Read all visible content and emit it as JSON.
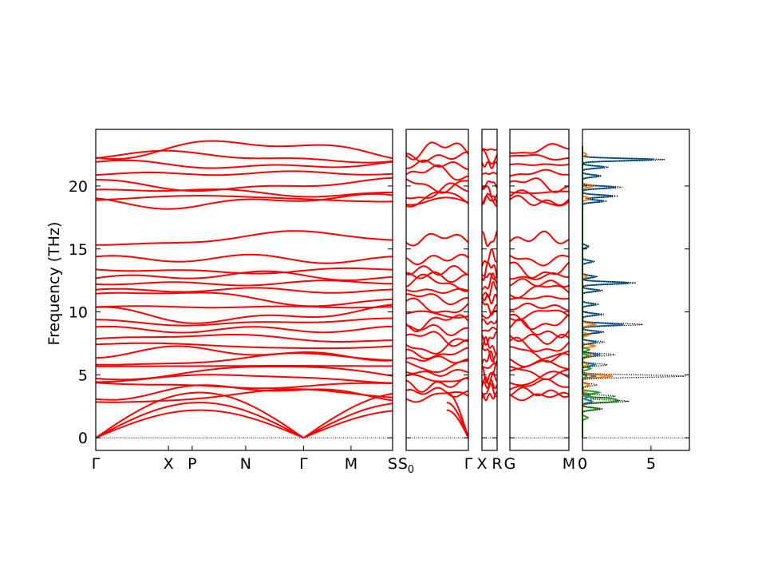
{
  "chart_data": {
    "type": "line",
    "ylabel": "Frequency (THz)",
    "ylim": [
      -1.0,
      24.5
    ],
    "y_ticks": [
      0,
      5,
      10,
      15,
      20
    ],
    "band_color": "#ff0000",
    "zero_line_color": "#0000aa",
    "panels": [
      {
        "id": "seg1",
        "xlim": [
          0,
          10
        ],
        "ticks": [
          {
            "x": 0,
            "label": "Γ"
          },
          {
            "x": 2.45,
            "label": "X"
          },
          {
            "x": 3.25,
            "label": "P"
          },
          {
            "x": 5.05,
            "label": "N"
          },
          {
            "x": 7.0,
            "label": "Γ"
          },
          {
            "x": 8.6,
            "label": "M"
          },
          {
            "x": 10,
            "label": "S"
          }
        ]
      },
      {
        "id": "seg2",
        "xlim": [
          0,
          10
        ],
        "ticks": [
          {
            "x": 0,
            "label": "S0"
          },
          {
            "x": 10,
            "label": "Γ"
          }
        ]
      },
      {
        "id": "seg3",
        "xlim": [
          0,
          10
        ],
        "ticks": [
          {
            "x": 0,
            "label": "X"
          },
          {
            "x": 10,
            "label": "R"
          }
        ]
      },
      {
        "id": "seg4",
        "xlim": [
          0,
          10
        ],
        "ticks": [
          {
            "x": 0,
            "label": "G"
          },
          {
            "x": 10,
            "label": "M"
          }
        ]
      }
    ],
    "dos": {
      "xlim": [
        0,
        7.8
      ],
      "x_ticks": [
        0,
        5
      ],
      "series": [
        {
          "color": "#1f77b4",
          "peaks": [
            [
              22.1,
              5.2
            ],
            [
              21.5,
              1.6
            ],
            [
              20.8,
              1.2
            ],
            [
              19.9,
              2.4
            ],
            [
              19.2,
              2.2
            ],
            [
              18.8,
              1.5
            ],
            [
              15.2,
              0.4
            ],
            [
              14.0,
              0.7
            ],
            [
              12.8,
              0.9
            ],
            [
              12.3,
              3.4
            ],
            [
              11.7,
              1.2
            ],
            [
              10.6,
              0.9
            ],
            [
              9.8,
              1.2
            ],
            [
              9.0,
              3.0
            ],
            [
              8.4,
              1.3
            ],
            [
              7.6,
              1.0
            ],
            [
              6.6,
              1.2
            ],
            [
              5.8,
              0.9
            ],
            [
              4.9,
              0.9
            ],
            [
              3.3,
              0.6
            ],
            [
              2.9,
              0.7
            ]
          ]
        },
        {
          "color": "#ff7f0e",
          "peaks": [
            [
              22.5,
              0.3
            ],
            [
              20.0,
              0.8
            ],
            [
              19.0,
              0.6
            ],
            [
              12.8,
              0.3
            ],
            [
              9.0,
              0.9
            ],
            [
              8.2,
              0.5
            ],
            [
              7.3,
              0.9
            ],
            [
              6.5,
              0.7
            ],
            [
              5.8,
              0.4
            ],
            [
              4.9,
              2.2
            ],
            [
              4.2,
              0.5
            ],
            [
              3.5,
              0.4
            ]
          ]
        },
        {
          "color": "#2ca02c",
          "peaks": [
            [
              7.0,
              0.5
            ],
            [
              6.5,
              0.4
            ],
            [
              5.5,
              0.6
            ],
            [
              4.9,
              0.3
            ],
            [
              3.6,
              1.2
            ],
            [
              3.1,
              2.1
            ],
            [
              2.9,
              2.4
            ],
            [
              2.3,
              1.2
            ],
            [
              1.6,
              0.4
            ]
          ]
        },
        {
          "color": "#000000",
          "dotted": true,
          "peaks": [
            [
              22.1,
              6.0
            ],
            [
              21.5,
              1.9
            ],
            [
              20.8,
              1.4
            ],
            [
              19.9,
              2.9
            ],
            [
              19.2,
              2.6
            ],
            [
              18.8,
              1.8
            ],
            [
              15.2,
              0.5
            ],
            [
              14.0,
              0.9
            ],
            [
              12.8,
              1.1
            ],
            [
              12.3,
              3.9
            ],
            [
              11.7,
              1.5
            ],
            [
              10.6,
              1.2
            ],
            [
              9.8,
              1.6
            ],
            [
              9.0,
              4.4
            ],
            [
              8.4,
              1.6
            ],
            [
              7.6,
              1.6
            ],
            [
              6.6,
              2.4
            ],
            [
              5.8,
              1.8
            ],
            [
              4.9,
              7.5
            ],
            [
              4.2,
              1.0
            ],
            [
              3.3,
              2.4
            ],
            [
              2.9,
              3.4
            ],
            [
              2.3,
              1.5
            ]
          ]
        }
      ]
    }
  }
}
